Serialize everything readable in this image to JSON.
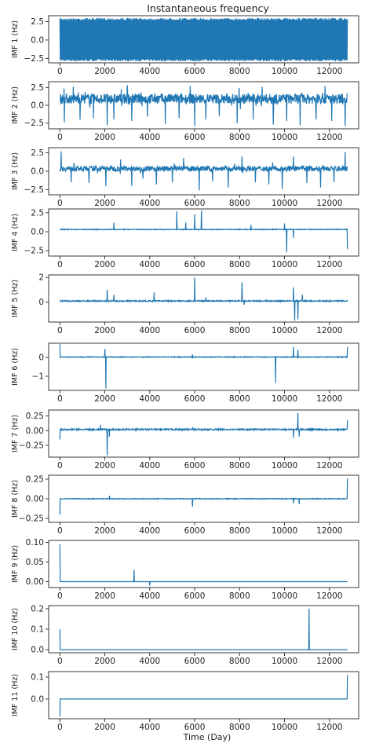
{
  "figure": {
    "title": "Instantaneous frequency",
    "xlabel": "Time (Day)",
    "xticks": [
      0,
      2000,
      4000,
      6000,
      8000,
      10000,
      12000
    ],
    "xlim": [
      -500,
      13300
    ],
    "series_color": "#1f77b4"
  },
  "chart_data": [
    {
      "type": "line",
      "ylabel": "IMF 1 (Hz)",
      "ylim": [
        -3.1,
        3.3
      ],
      "yticks": [
        2.5,
        0.0,
        -2.5
      ],
      "ytick_labels": [
        "2.5",
        "0.0",
        "−2.5"
      ],
      "x": [
        0,
        12800
      ],
      "baseline": 0.8,
      "noise": 1.5,
      "dense_band": [
        -2.9,
        3.0
      ],
      "spikes": []
    },
    {
      "type": "line",
      "ylabel": "IMF 2 (Hz)",
      "ylim": [
        -3.3,
        3.3
      ],
      "yticks": [
        2.5,
        0.0,
        -2.5
      ],
      "ytick_labels": [
        "2.5",
        "0.0",
        "−2.5"
      ],
      "x": [
        0,
        12800
      ],
      "baseline": 0.9,
      "noise": 0.7,
      "spikes": [
        [
          200,
          -2.4
        ],
        [
          900,
          -2.0
        ],
        [
          1500,
          -1.8
        ],
        [
          2100,
          -2.8
        ],
        [
          2400,
          -2.0
        ],
        [
          3200,
          -2.2
        ],
        [
          3900,
          -1.6
        ],
        [
          4700,
          -2.6
        ],
        [
          5300,
          -1.8
        ],
        [
          6000,
          -2.9
        ],
        [
          6500,
          -2.0
        ],
        [
          7100,
          -1.5
        ],
        [
          7900,
          -2.5
        ],
        [
          8600,
          -2.0
        ],
        [
          9500,
          -2.7
        ],
        [
          10100,
          -2.2
        ],
        [
          10700,
          -2.8
        ],
        [
          11400,
          -2.0
        ],
        [
          12100,
          -2.2
        ],
        [
          12700,
          -2.9
        ],
        [
          600,
          2.6
        ],
        [
          3000,
          2.8
        ],
        [
          5800,
          2.7
        ],
        [
          9000,
          2.6
        ],
        [
          11800,
          2.7
        ]
      ]
    },
    {
      "type": "line",
      "ylabel": "IMF 3 (Hz)",
      "ylim": [
        -3.2,
        3.2
      ],
      "yticks": [
        2.5,
        0.0,
        -2.5
      ],
      "ytick_labels": [
        "2.5",
        "0.0",
        "−2.5"
      ],
      "x": [
        0,
        12800
      ],
      "baseline": 0.35,
      "noise": 0.35,
      "spikes": [
        [
          50,
          2.7
        ],
        [
          500,
          -1.5
        ],
        [
          1300,
          -1.6
        ],
        [
          2050,
          -2.0
        ],
        [
          2700,
          1.6
        ],
        [
          3200,
          -2.0
        ],
        [
          3700,
          -1.0
        ],
        [
          4300,
          -1.8
        ],
        [
          5000,
          -1.5
        ],
        [
          5500,
          1.8
        ],
        [
          6200,
          -2.6
        ],
        [
          6800,
          -1.4
        ],
        [
          7500,
          -2.2
        ],
        [
          8100,
          2.0
        ],
        [
          8700,
          -1.5
        ],
        [
          9300,
          -1.8
        ],
        [
          9900,
          -2.4
        ],
        [
          10400,
          2.0
        ],
        [
          11000,
          -1.6
        ],
        [
          11600,
          -2.2
        ],
        [
          12200,
          -1.5
        ],
        [
          12700,
          2.6
        ]
      ]
    },
    {
      "type": "line",
      "ylabel": "IMF 4 (Hz)",
      "ylim": [
        -3.2,
        3.0
      ],
      "yticks": [
        2.5,
        0.0,
        -2.5
      ],
      "ytick_labels": [
        "2.5",
        "0.0",
        "−2.5"
      ],
      "x": [
        0,
        12800
      ],
      "baseline": 0.3,
      "noise": 0.05,
      "spikes": [
        [
          2400,
          1.2
        ],
        [
          5200,
          2.7
        ],
        [
          5600,
          1.2
        ],
        [
          6000,
          2.3
        ],
        [
          6300,
          2.8
        ],
        [
          8500,
          0.9
        ],
        [
          10000,
          1.1
        ],
        [
          10100,
          -2.7
        ],
        [
          10400,
          -0.8
        ],
        [
          12800,
          -2.3
        ]
      ]
    },
    {
      "type": "line",
      "ylabel": "IMF 5 (Hz)",
      "ylim": [
        -1.6,
        2.2
      ],
      "yticks": [
        2,
        0
      ],
      "ytick_labels": [
        "2",
        "0"
      ],
      "x": [
        0,
        12800
      ],
      "baseline": 0.1,
      "noise": 0.05,
      "spikes": [
        [
          2100,
          1.0
        ],
        [
          2400,
          0.6
        ],
        [
          4200,
          0.8
        ],
        [
          6000,
          2.0
        ],
        [
          6500,
          0.4
        ],
        [
          8100,
          1.6
        ],
        [
          8200,
          -0.2
        ],
        [
          10400,
          1.2
        ],
        [
          10450,
          -1.5
        ],
        [
          10600,
          -1.4
        ],
        [
          10800,
          0.6
        ],
        [
          12800,
          0.2
        ]
      ]
    },
    {
      "type": "line",
      "ylabel": "IMF 6 (Hz)",
      "ylim": [
        -1.75,
        0.75
      ],
      "yticks": [
        0,
        -1
      ],
      "ytick_labels": [
        "0",
        "−1"
      ],
      "x": [
        0,
        12800
      ],
      "baseline": 0.02,
      "noise": 0.02,
      "spikes": [
        [
          0,
          0.7
        ],
        [
          2000,
          0.45
        ],
        [
          2050,
          -1.65
        ],
        [
          5900,
          0.15
        ],
        [
          9600,
          -1.35
        ],
        [
          10400,
          0.55
        ],
        [
          10600,
          0.4
        ],
        [
          12800,
          0.55
        ]
      ]
    },
    {
      "type": "line",
      "ylabel": "IMF 7 (Hz)",
      "ylim": [
        -0.45,
        0.35
      ],
      "yticks": [
        0.25,
        0.0,
        -0.25
      ],
      "ytick_labels": [
        "0.25",
        "0.00",
        "−0.25"
      ],
      "x": [
        0,
        12800
      ],
      "baseline": 0.02,
      "noise": 0.012,
      "spikes": [
        [
          0,
          -0.15
        ],
        [
          1800,
          0.1
        ],
        [
          2100,
          -0.42
        ],
        [
          2200,
          -0.1
        ],
        [
          5900,
          0.06
        ],
        [
          10400,
          -0.12
        ],
        [
          10600,
          0.3
        ],
        [
          10650,
          -0.1
        ],
        [
          12800,
          0.18
        ]
      ]
    },
    {
      "type": "line",
      "ylabel": "IMF 8 (Hz)",
      "ylim": [
        -0.3,
        0.3
      ],
      "yticks": [
        0.25,
        0.0,
        -0.25
      ],
      "ytick_labels": [
        "0.25",
        "0.00",
        "−0.25"
      ],
      "x": [
        0,
        12800
      ],
      "baseline": 0.0,
      "noise": 0.004,
      "spikes": [
        [
          0,
          -0.2
        ],
        [
          2200,
          0.04
        ],
        [
          5900,
          -0.1
        ],
        [
          10400,
          -0.06
        ],
        [
          10650,
          -0.07
        ],
        [
          12800,
          0.26
        ]
      ]
    },
    {
      "type": "line",
      "ylabel": "IMF 9 (Hz)",
      "ylim": [
        -0.015,
        0.105
      ],
      "yticks": [
        0.1,
        0.05,
        0.0
      ],
      "ytick_labels": [
        "0.10",
        "0.05",
        "0.00"
      ],
      "x": [
        0,
        12800
      ],
      "baseline": 0.0,
      "noise": 0.0,
      "spikes": [
        [
          0,
          0.095
        ],
        [
          3300,
          0.03
        ],
        [
          4000,
          -0.01
        ]
      ]
    },
    {
      "type": "line",
      "ylabel": "IMF 10 (Hz)",
      "ylim": [
        -0.015,
        0.215
      ],
      "yticks": [
        0.2,
        0.1,
        0.0
      ],
      "ytick_labels": [
        "0.2",
        "0.1",
        "0.0"
      ],
      "x": [
        0,
        12800
      ],
      "baseline": 0.0,
      "noise": 0.0,
      "spikes": [
        [
          0,
          0.1
        ],
        [
          11100,
          0.2
        ]
      ]
    },
    {
      "type": "line",
      "ylabel": "IMF 11 (Hz)",
      "ylim": [
        -0.09,
        0.125
      ],
      "yticks": [
        0.1,
        0.0
      ],
      "ytick_labels": [
        "0.1",
        "0.0"
      ],
      "x": [
        0,
        12800
      ],
      "baseline": 0.0,
      "noise": 0.0,
      "spikes": [
        [
          0,
          -0.08
        ],
        [
          12800,
          0.11
        ]
      ]
    }
  ]
}
